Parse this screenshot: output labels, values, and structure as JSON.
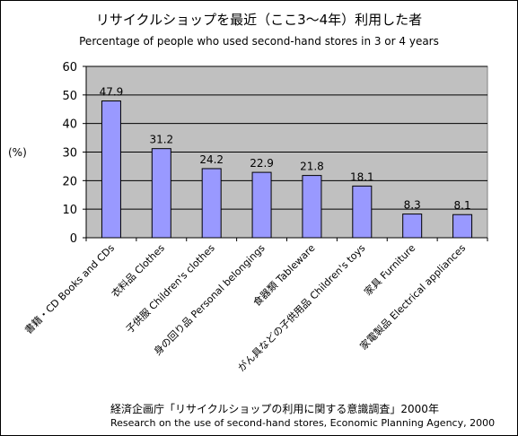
{
  "header": {
    "title_ja": "リサイクルショップを最近（ここ3〜4年）利用した者",
    "title_en": "Percentage of people who used second-hand stores in 3 or 4 years",
    "unit": "(%)"
  },
  "footer": {
    "source_ja": "経済企画庁「リサイクルショップの利用に関する意識調査」2000年",
    "source_en": "Research on the use of second-hand stores, Economic Planning Agency, 2000"
  },
  "colors": {
    "plot_bg": "#c0c0c0",
    "bar": "#9999ff",
    "bar_stroke": "#000000",
    "grid": "#000000"
  },
  "chart_data": {
    "type": "bar",
    "categories": [
      "書籍・CD Books and CDs",
      "衣料品 Clothes",
      "子供服 Children's clothes",
      "身の回り品 Personal belongings",
      "食器類 Tableware",
      "がん具などの子供用品 Children's toys",
      "家具 Furniture",
      "家電製品 Electrical appliances"
    ],
    "values": [
      47.9,
      31.2,
      24.2,
      22.9,
      21.8,
      18.1,
      8.3,
      8.1
    ],
    "value_labels": [
      "47.9",
      "31.2",
      "24.2",
      "22.9",
      "21.8",
      "18.1",
      "8.3",
      "8.1"
    ],
    "yticks": [
      "0",
      "10",
      "20",
      "30",
      "40",
      "50",
      "60"
    ],
    "ylim": [
      0,
      60
    ],
    "ylabel": "(%)",
    "grid": true,
    "legend": "none"
  }
}
